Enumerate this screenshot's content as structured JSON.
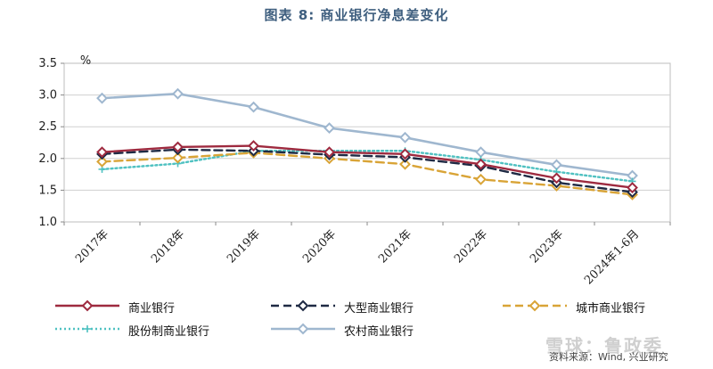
{
  "chart_data": {
    "type": "line",
    "title": "图表 8:  商业银行净息差变化",
    "ylabel": "%",
    "ylim": [
      1.0,
      3.5
    ],
    "yticks": [
      "1.0",
      "1.5",
      "2.0",
      "2.5",
      "3.0",
      "3.5"
    ],
    "categories": [
      "2017年",
      "2018年",
      "2019年",
      "2020年",
      "2021年",
      "2022年",
      "2023年",
      "2024年1-6月"
    ],
    "grid": true,
    "legend_position": "bottom",
    "series": [
      {
        "name": "商业银行",
        "values": [
          2.1,
          2.18,
          2.2,
          2.1,
          2.07,
          1.91,
          1.69,
          1.54
        ],
        "color": "#9e2a3f",
        "dash": "solid",
        "marker": "diamond"
      },
      {
        "name": "大型商业银行",
        "values": [
          2.07,
          2.14,
          2.12,
          2.06,
          2.02,
          1.88,
          1.62,
          1.47
        ],
        "color": "#1f2a44",
        "dash": "dash",
        "marker": "diamond"
      },
      {
        "name": "城市商业银行",
        "values": [
          1.95,
          2.01,
          2.09,
          2.0,
          1.91,
          1.67,
          1.57,
          1.43
        ],
        "color": "#d9a437",
        "dash": "dash",
        "marker": "diamond"
      },
      {
        "name": "股份制商业银行",
        "values": [
          1.83,
          1.92,
          2.12,
          2.12,
          2.12,
          1.98,
          1.79,
          1.64
        ],
        "color": "#4fc1c1",
        "dash": "dot",
        "marker": "cross"
      },
      {
        "name": "农村商业银行",
        "values": [
          2.95,
          3.02,
          2.81,
          2.48,
          2.33,
          2.1,
          1.9,
          1.73
        ],
        "color": "#9fb7cf",
        "dash": "solid",
        "marker": "diamond"
      }
    ]
  },
  "source_text": "资料来源：Wind, 兴业研究",
  "watermark_text": "雪球：鲁政委"
}
